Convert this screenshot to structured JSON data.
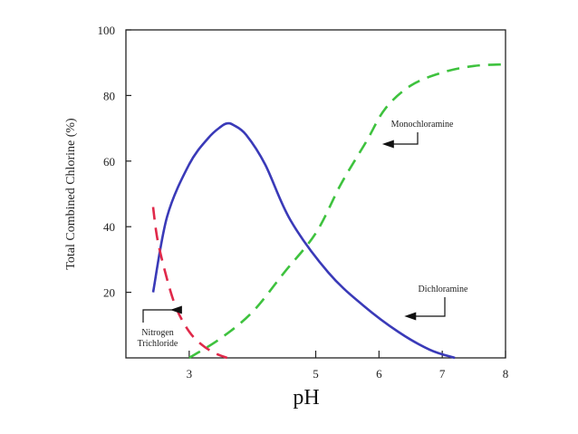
{
  "chart_data": {
    "type": "line",
    "title": "",
    "xlabel": "pH",
    "ylabel": "Total Combined Chlorine (%)",
    "xlim": [
      2,
      8
    ],
    "ylim": [
      0,
      100
    ],
    "x_ticks": [
      3,
      5,
      6,
      7,
      8
    ],
    "x_tick_labels": [
      "3",
      "5",
      "6",
      "7",
      "8"
    ],
    "y_ticks": [
      20,
      40,
      60,
      80,
      100
    ],
    "y_tick_labels": [
      "20",
      "40",
      "60",
      "80",
      "100"
    ],
    "grid": false,
    "legend": "none",
    "series": [
      {
        "name": "Dichloramine",
        "color": "#3a3ab8",
        "dash": "solid",
        "x": [
          2.43,
          2.65,
          3.0,
          3.3,
          3.5,
          3.6,
          3.7,
          3.9,
          4.2,
          4.6,
          5.2,
          5.75,
          6.3,
          6.8,
          7.2
        ],
        "y": [
          20,
          43,
          59,
          67,
          70.5,
          71.5,
          71,
          68,
          59,
          42,
          26,
          16,
          8,
          2.5,
          0
        ]
      },
      {
        "name": "Monochloramine",
        "color": "#3ec23e",
        "dash": "dashed",
        "x": [
          3.0,
          3.5,
          4.0,
          4.5,
          5.0,
          5.4,
          5.8,
          6.1,
          6.5,
          7.0,
          7.5,
          8.0
        ],
        "y": [
          0,
          6,
          14,
          26,
          38,
          53,
          66,
          76,
          83,
          87,
          89,
          89.5
        ]
      },
      {
        "name": "Nitrogen Trichloride",
        "color": "#e0294a",
        "dash": "dashed",
        "x": [
          2.43,
          2.5,
          2.65,
          2.8,
          3.0,
          3.2,
          3.4,
          3.6
        ],
        "y": [
          46,
          36,
          24,
          15,
          8,
          4,
          1.5,
          0
        ]
      }
    ],
    "annotations": [
      {
        "lines": [
          "Monochloramine"
        ],
        "target": [
          6.05,
          66
        ]
      },
      {
        "lines": [
          "Dichloramine"
        ],
        "target": [
          6.4,
          13
        ]
      },
      {
        "lines": [
          "Nitrogen",
          "Trichloride"
        ],
        "target": [
          2.7,
          15
        ]
      }
    ]
  }
}
